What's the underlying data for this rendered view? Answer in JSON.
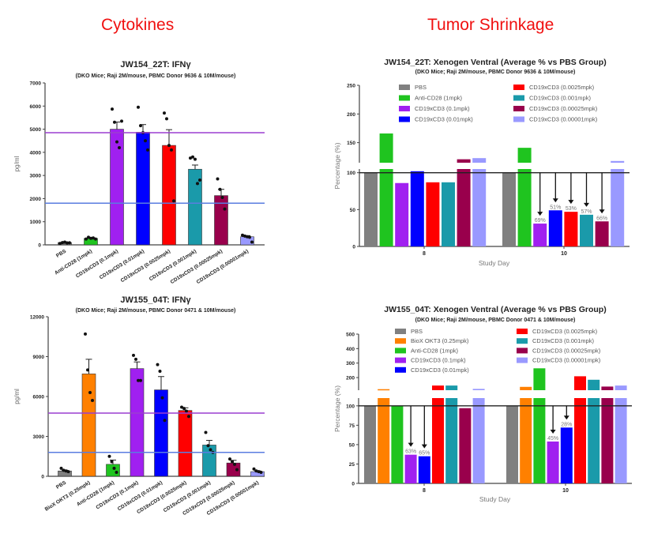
{
  "headings": {
    "left": "Cytokines",
    "right": "Tumor Shrinkage"
  },
  "colors": {
    "PBS": "#808080",
    "BioX OKT3 (0.25mpk)": "#ff8000",
    "Anti-CD28 (1mpk)": "#1fc41f",
    "CD19xCD3 (0.1mpk)": "#a020f0",
    "CD19xCD3 (0.01mpk)": "#0000ff",
    "CD19xCD3 (0.0025mpk)": "#ff0000",
    "CD19xCD3 (0.001mpk)": "#1a9aaa",
    "CD19xCD3 (0.00025mpk)": "#99004c",
    "CD19xCD3 (0.00001mpk)": "#9999ff",
    "ref_purple": "#9b3fd0",
    "ref_blue": "#5a7de0"
  },
  "chart_data": [
    {
      "type": "bar",
      "title": "JW154_22T: IFNγ",
      "subtitle": "(DKO Mice; Raji 2M/mouse, PBMC Donor 9636 & 10M/mouse)",
      "ylabel": "pg/ml",
      "ylim": [
        0,
        7000
      ],
      "yticks": [
        "0",
        "1000",
        "2000",
        "3000",
        "4000",
        "5000",
        "6000",
        "7000"
      ],
      "reference_lines": [
        4850,
        1800
      ],
      "categories": [
        "PBS",
        "Anti-CD28 (1mpk)",
        "CD19xCD3 (0.1mpk)",
        "CD19xCD3 (0.01mpk)",
        "CD19xCD3 (0.0025mpk)",
        "CD19xCD3 (0.001mpk)",
        "CD19xCD3 (0.00025mpk)",
        "CD19xCD3 (0.00001mpk)"
      ],
      "values": [
        100,
        280,
        5000,
        4870,
        4300,
        3270,
        2130,
        350
      ],
      "sem": [
        30,
        40,
        310,
        330,
        680,
        180,
        270,
        50
      ],
      "points": [
        [
          60,
          100,
          120,
          80,
          90
        ],
        [
          250,
          330,
          280,
          300,
          250
        ],
        [
          5870,
          5300,
          4450,
          4200,
          5350
        ],
        [
          5950,
          5150,
          4850,
          4500,
          4100
        ],
        [
          5700,
          5450,
          4300,
          4100,
          1900
        ],
        [
          3750,
          3800,
          3700,
          2650,
          2800
        ],
        [
          2850,
          2400,
          2050,
          1550
        ],
        [
          420,
          380,
          350,
          330,
          120
        ]
      ]
    },
    {
      "type": "bar",
      "title": "JW155_04T: IFNγ",
      "subtitle": "(DKO Mice; Raji 2M/mouse, PBMC Donor 0471 & 10M/mouse)",
      "ylabel": "pg/ml",
      "ylim": [
        0,
        12000
      ],
      "yticks": [
        "0",
        "3000",
        "6000",
        "9000",
        "12000"
      ],
      "reference_lines": [
        4750,
        1800
      ],
      "categories": [
        "PBS",
        "BioX OKT3 (0.25mpk)",
        "Anti-CD28 (1mpk)",
        "CD19xCD3 (0.1mpk)",
        "CD19xCD3 (0.01mpk)",
        "CD19xCD3 (0.0025mpk)",
        "CD19xCD3 (0.001mpk)",
        "CD19xCD3 (0.00025mpk)",
        "CD19xCD3 (0.00001mpk)"
      ],
      "values": [
        400,
        7700,
        900,
        8100,
        6500,
        4950,
        2350,
        1000,
        350
      ],
      "sem": [
        60,
        1100,
        320,
        500,
        1000,
        200,
        350,
        200,
        60
      ],
      "points": [
        [
          600,
          450,
          400,
          350
        ],
        [
          10700,
          8000,
          6300,
          5700
        ],
        [
          1500,
          1100,
          600,
          300
        ],
        [
          9100,
          8800,
          7200,
          7200
        ],
        [
          8400,
          7900,
          5900,
          4200
        ],
        [
          5200,
          5100,
          4900,
          4500
        ],
        [
          3300,
          2300,
          2000,
          1800
        ],
        [
          1300,
          1100,
          900,
          500
        ],
        [
          550,
          400,
          350,
          300
        ]
      ]
    },
    {
      "type": "bar",
      "title": "JW154_22T: Xenogen Ventral (Average % vs PBS Group)",
      "subtitle": "(DKO Mice; Raji 2M/mouse, PBMC Donor 9636 & 10M/mouse)",
      "xlabel": "Study Day",
      "ylabel": "Percentage (%)",
      "ylim": [
        0,
        250
      ],
      "axis_break": [
        105,
        115
      ],
      "yticks_lower": [
        "0",
        "50",
        "100"
      ],
      "yticks_upper": [
        "150",
        "200",
        "250"
      ],
      "reference_line": 100,
      "legend": "top",
      "categories": [
        "8",
        "10"
      ],
      "series": [
        {
          "name": "PBS",
          "values": [
            100,
            100
          ]
        },
        {
          "name": "Anti-CD28 (1mpk)",
          "values": [
            166,
            141
          ]
        },
        {
          "name": "CD19xCD3 (0.1mpk)",
          "values": [
            86,
            31
          ]
        },
        {
          "name": "CD19xCD3 (0.01mpk)",
          "values": [
            102,
            49
          ]
        },
        {
          "name": "CD19xCD3 (0.0025mpk)",
          "values": [
            87,
            47
          ]
        },
        {
          "name": "CD19xCD3 (0.001mpk)",
          "values": [
            87,
            43
          ]
        },
        {
          "name": "CD19xCD3 (0.00025mpk)",
          "values": [
            121,
            34
          ]
        },
        {
          "name": "CD19xCD3 (0.00001mpk)",
          "values": [
            123,
            118
          ]
        }
      ],
      "annotations": [
        {
          "day": "10",
          "series": "CD19xCD3 (0.1mpk)",
          "text": "69%"
        },
        {
          "day": "10",
          "series": "CD19xCD3 (0.01mpk)",
          "text": "51%"
        },
        {
          "day": "10",
          "series": "CD19xCD3 (0.0025mpk)",
          "text": "53%"
        },
        {
          "day": "10",
          "series": "CD19xCD3 (0.001mpk)",
          "text": "57%"
        },
        {
          "day": "10",
          "series": "CD19xCD3 (0.00025mpk)",
          "text": "66%"
        }
      ]
    },
    {
      "type": "bar",
      "title": "JW155_04T: Xenogen Ventral (Average % vs PBS Group)",
      "subtitle": "(DKO Mice; Raji 2M/mouse, PBMC Donor 0471 & 10M/mouse)",
      "xlabel": "Study Day",
      "ylabel": "Percentage (%)",
      "ylim": [
        0,
        500
      ],
      "axis_break": [
        110,
        113
      ],
      "yticks_lower": [
        "0",
        "25",
        "50",
        "75",
        "100"
      ],
      "yticks_upper": [
        "200",
        "300",
        "400",
        "500"
      ],
      "reference_line": 100,
      "legend": "top",
      "categories": [
        "8",
        "10"
      ],
      "series": [
        {
          "name": "PBS",
          "values": [
            100,
            100
          ]
        },
        {
          "name": "BioX OKT3 (0.25mpk)",
          "values": [
            120,
            136
          ]
        },
        {
          "name": "Anti-CD28 (1mpk)",
          "values": [
            100,
            264
          ]
        },
        {
          "name": "CD19xCD3 (0.1mpk)",
          "values": [
            37,
            54
          ]
        },
        {
          "name": "CD19xCD3 (0.01mpk)",
          "values": [
            35,
            72
          ]
        },
        {
          "name": "CD19xCD3 (0.0025mpk)",
          "values": [
            145,
            209
          ]
        },
        {
          "name": "CD19xCD3 (0.001mpk)",
          "values": [
            145,
            185
          ]
        },
        {
          "name": "CD19xCD3 (0.00025mpk)",
          "values": [
            97,
            138
          ]
        },
        {
          "name": "CD19xCD3 (0.00001mpk)",
          "values": [
            122,
            145
          ]
        }
      ],
      "annotations": [
        {
          "day": "8",
          "series": "CD19xCD3 (0.1mpk)",
          "text": "63%"
        },
        {
          "day": "8",
          "series": "CD19xCD3 (0.01mpk)",
          "text": "65%"
        },
        {
          "day": "10",
          "series": "CD19xCD3 (0.1mpk)",
          "text": "45%"
        },
        {
          "day": "10",
          "series": "CD19xCD3 (0.01mpk)",
          "text": "28%"
        }
      ]
    }
  ]
}
